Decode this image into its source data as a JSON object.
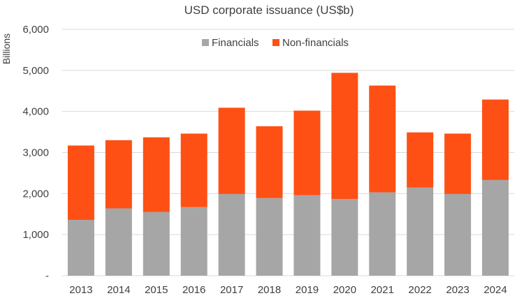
{
  "chart_data": {
    "type": "bar",
    "stacked": true,
    "title": "USD corporate issuance (US$b)",
    "ylabel": "Billions",
    "xlabel": "",
    "categories": [
      "2013",
      "2014",
      "2015",
      "2016",
      "2017",
      "2018",
      "2019",
      "2020",
      "2021",
      "2022",
      "2023",
      "2024"
    ],
    "series": [
      {
        "name": "Financials",
        "color": "#a6a6a6",
        "values": [
          1360,
          1640,
          1550,
          1670,
          1990,
          1890,
          1960,
          1870,
          2030,
          2150,
          1990,
          2330
        ]
      },
      {
        "name": "Non-financials",
        "color": "#fe5014",
        "values": [
          1810,
          1660,
          1820,
          1790,
          2100,
          1750,
          2060,
          3070,
          2600,
          1340,
          1470,
          1960
        ]
      }
    ],
    "ylim": [
      0,
      6000
    ],
    "yticks": [
      {
        "value": 0,
        "label": "-"
      },
      {
        "value": 1000,
        "label": "1,000"
      },
      {
        "value": 2000,
        "label": "2,000"
      },
      {
        "value": 3000,
        "label": "3,000"
      },
      {
        "value": 4000,
        "label": "4,000"
      },
      {
        "value": 5000,
        "label": "5,000"
      },
      {
        "value": 6000,
        "label": "6,000"
      }
    ],
    "grid": true,
    "legend_position": "top-center"
  }
}
